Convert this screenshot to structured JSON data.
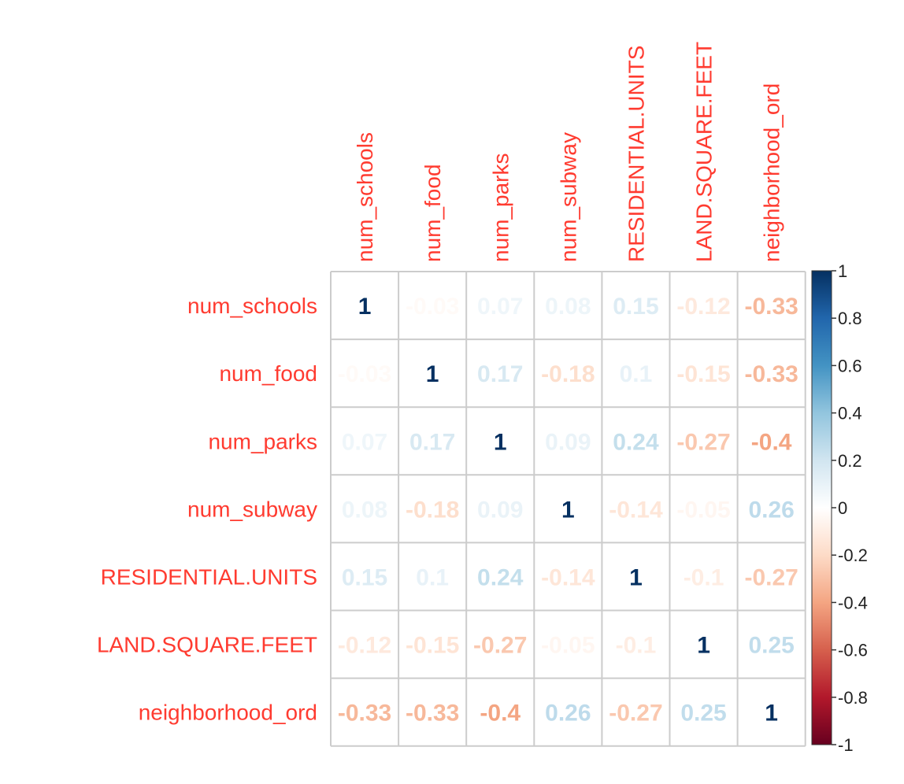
{
  "chart_data": {
    "type": "heatmap",
    "variables": [
      "num_schools",
      "num_food",
      "num_parks",
      "num_subway",
      "RESIDENTIAL.UNITS",
      "LAND.SQUARE.FEET",
      "neighborhood_ord"
    ],
    "values": [
      [
        1,
        -0.03,
        0.07,
        0.08,
        0.15,
        -0.12,
        -0.33
      ],
      [
        -0.03,
        1,
        0.17,
        -0.18,
        0.1,
        -0.15,
        -0.33
      ],
      [
        0.07,
        0.17,
        1,
        0.09,
        0.24,
        -0.27,
        -0.4
      ],
      [
        0.08,
        -0.18,
        0.09,
        1,
        -0.14,
        -0.05,
        0.26
      ],
      [
        0.15,
        0.1,
        0.24,
        -0.14,
        1,
        -0.1,
        -0.27
      ],
      [
        -0.12,
        -0.15,
        -0.27,
        -0.05,
        -0.1,
        1,
        0.25
      ],
      [
        -0.33,
        -0.33,
        -0.4,
        0.26,
        -0.27,
        0.25,
        1
      ]
    ],
    "display_labels": [
      [
        "1",
        "-0.03",
        "0.07",
        "0.08",
        "0.15",
        "-0.12",
        "-0.33"
      ],
      [
        "-0.03",
        "1",
        "0.17",
        "-0.18",
        "0.1",
        "-0.15",
        "-0.33"
      ],
      [
        "0.07",
        "0.17",
        "1",
        "0.09",
        "0.24",
        "-0.27",
        "-0.4"
      ],
      [
        "0.08",
        "-0.18",
        "0.09",
        "1",
        "-0.14",
        "-0.05",
        "0.26"
      ],
      [
        "0.15",
        "0.1",
        "0.24",
        "-0.14",
        "1",
        "-0.1",
        "-0.27"
      ],
      [
        "-0.12",
        "-0.15",
        "-0.27",
        "-0.05",
        "-0.1",
        "1",
        "0.25"
      ],
      [
        "-0.33",
        "-0.33",
        "-0.4",
        "0.26",
        "-0.27",
        "0.25",
        "1"
      ]
    ],
    "colorbar": {
      "range": [
        -1,
        1
      ],
      "ticks": [
        "1",
        "0.8",
        "0.6",
        "0.4",
        "0.2",
        "0",
        "-0.2",
        "-0.4",
        "-0.6",
        "-0.8",
        "-1"
      ],
      "tick_values": [
        1,
        0.8,
        0.6,
        0.4,
        0.2,
        0,
        -0.2,
        -0.4,
        -0.6,
        -0.8,
        -1
      ]
    },
    "colors": {
      "label": "#ff3b30",
      "grid": "#cccccc",
      "scale": [
        "#67001f",
        "#b2182b",
        "#d6604d",
        "#f4a582",
        "#fddbc7",
        "#ffffff",
        "#d1e5f0",
        "#92c5de",
        "#4393c3",
        "#2166ac",
        "#053061"
      ]
    }
  }
}
